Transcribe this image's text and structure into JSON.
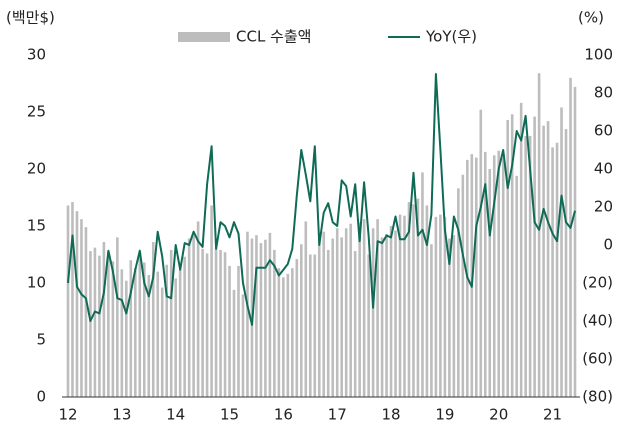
{
  "chart_data": {
    "type": "bar_line",
    "y_label": "(백만$)",
    "y2_label": "(%)",
    "categories": [
      "12",
      null,
      null,
      null,
      null,
      null,
      null,
      null,
      null,
      null,
      null,
      null,
      "13",
      null,
      null,
      null,
      null,
      null,
      null,
      null,
      null,
      null,
      null,
      null,
      "14",
      null,
      null,
      null,
      null,
      null,
      null,
      null,
      null,
      null,
      null,
      null,
      "15",
      null,
      null,
      null,
      null,
      null,
      null,
      null,
      null,
      null,
      null,
      null,
      "16",
      null,
      null,
      null,
      null,
      null,
      null,
      null,
      null,
      null,
      null,
      null,
      "17",
      null,
      null,
      null,
      null,
      null,
      null,
      null,
      null,
      null,
      null,
      null,
      "18",
      null,
      null,
      null,
      null,
      null,
      null,
      null,
      null,
      null,
      null,
      null,
      "19",
      null,
      null,
      null,
      null,
      null,
      null,
      null,
      null,
      null,
      null,
      null,
      "20",
      null,
      null,
      null,
      null,
      null,
      null,
      null,
      null,
      null,
      null,
      null,
      "21",
      null,
      null,
      null,
      null,
      null
    ],
    "series": [
      {
        "name": "CCL 수출액",
        "type": "bar",
        "color": "#bdbdbd",
        "values": [
          16.8,
          17.1,
          16.3,
          15.6,
          14.9,
          12.8,
          13.1,
          12.4,
          13.6,
          12.7,
          11.9,
          14.0,
          11.2,
          10.2,
          12.0,
          11.3,
          12.5,
          11.8,
          10.7,
          13.6,
          11.0,
          9.6,
          11.6,
          12.9,
          10.4,
          11.2,
          12.3,
          13.9,
          14.2,
          15.4,
          13.0,
          12.6,
          16.8,
          13.0,
          12.9,
          12.7,
          11.5,
          9.4,
          11.5,
          9.0,
          14.5,
          13.9,
          14.2,
          13.5,
          13.8,
          14.4,
          12.9,
          11.3,
          10.5,
          10.8,
          11.3,
          12.1,
          13.4,
          15.4,
          12.5,
          12.5,
          14.0,
          14.5,
          12.9,
          13.9,
          14.8,
          14.0,
          14.8,
          15.2,
          12.8,
          15.3,
          15.6,
          12.5,
          14.8,
          15.6,
          14.0,
          14.3,
          15.0,
          14.6,
          16.0,
          15.9,
          17.1,
          16.9,
          17.4,
          19.7,
          16.8,
          13.4,
          15.8,
          16.0,
          15.8,
          13.9,
          14.2,
          18.3,
          19.5,
          20.8,
          21.3,
          21.0,
          25.2,
          21.5,
          20.0,
          21.2,
          21.6,
          21.0,
          24.3,
          24.8,
          19.4,
          25.8,
          22.9,
          22.9,
          24.6,
          28.4,
          23.8,
          24.2,
          21.9,
          22.3,
          25.4,
          23.5,
          28.0,
          27.2
        ]
      },
      {
        "name": "YoY(우)",
        "type": "line",
        "axis": "y2",
        "color": "#0f6b55",
        "values": [
          -20,
          5,
          -22,
          -26,
          -28,
          -40,
          -35,
          -36,
          -25,
          -3,
          -14,
          -28,
          -29,
          -36,
          -25,
          -13,
          -3,
          -20,
          -27,
          -17,
          7,
          -6,
          -27,
          -28,
          0,
          -13,
          1,
          0,
          7,
          2,
          -1,
          32,
          52,
          -2,
          12,
          10,
          4,
          12,
          6,
          -20,
          -32,
          -42,
          -12,
          -12,
          -12,
          -8,
          -11,
          -16,
          -13,
          -10,
          -2,
          26,
          50,
          37,
          23,
          52,
          0,
          17,
          22,
          12,
          10,
          34,
          31,
          15,
          32,
          2,
          33,
          5,
          -33,
          2,
          1,
          5,
          4,
          15,
          3,
          3,
          7,
          38,
          5,
          8,
          0,
          16,
          90,
          50,
          8,
          -10,
          15,
          8,
          -5,
          -17,
          -22,
          10,
          20,
          32,
          5,
          22,
          40,
          50,
          30,
          42,
          60,
          55,
          68,
          40,
          12,
          8,
          19,
          12,
          6,
          2,
          26,
          12,
          9,
          18
        ]
      }
    ],
    "ylim": [
      0,
      30
    ],
    "yticks": [
      0,
      5,
      10,
      15,
      20,
      25,
      30
    ],
    "y2lim": [
      -80,
      100
    ],
    "y2ticks": [
      {
        "value": -80,
        "label": "(80)"
      },
      {
        "value": -60,
        "label": "(60)"
      },
      {
        "value": -40,
        "label": "(40)"
      },
      {
        "value": -20,
        "label": "(20)"
      },
      0,
      20,
      40,
      60,
      80,
      100
    ]
  }
}
